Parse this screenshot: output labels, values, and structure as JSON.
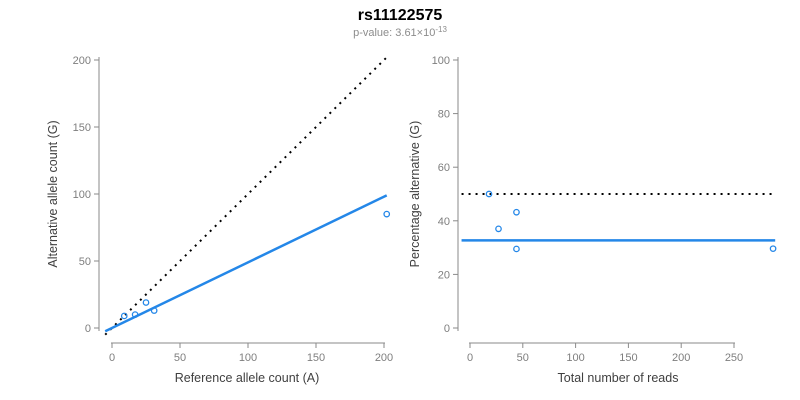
{
  "header": {
    "title": "rs11122575",
    "pvalue_base": "p-value: 3.61×10",
    "pvalue_exponent": "-13"
  },
  "colors": {
    "accent": "#2487E8",
    "axis": "#8a8a8a",
    "tick_label": "#7e7e7e",
    "axis_title": "#404040",
    "title": "#000000",
    "subtitle": "#8c8c8c",
    "background": "#ffffff",
    "dotted_line": "#000000"
  },
  "chart_data": [
    {
      "type": "scatter",
      "name": "allele-counts",
      "title": "",
      "xlabel": "Reference allele count (A)",
      "ylabel": "Alternative allele count (G)",
      "xlim": [
        0,
        200
      ],
      "ylim": [
        0,
        200
      ],
      "xticks": [
        0,
        50,
        100,
        150,
        200
      ],
      "yticks": [
        0,
        50,
        100,
        150,
        200
      ],
      "grid": false,
      "legend": "none",
      "points": [
        [
          9,
          9
        ],
        [
          17,
          10
        ],
        [
          25,
          19
        ],
        [
          31,
          13
        ],
        [
          202,
          85
        ]
      ],
      "lines": [
        {
          "name": "identity-line",
          "style": "dotted",
          "color": "black",
          "slope": 1,
          "intercept": 0
        },
        {
          "name": "fit-line",
          "style": "solid",
          "color": "accent",
          "slope": 0.49,
          "intercept": 0
        }
      ]
    },
    {
      "type": "scatter",
      "name": "percentage-vs-reads",
      "title": "",
      "xlabel": "Total number of reads",
      "ylabel": "Percentage alternative (G)",
      "xlim": [
        0,
        250
      ],
      "ylim": [
        0,
        100
      ],
      "xticks": [
        0,
        50,
        100,
        150,
        200,
        250
      ],
      "yticks": [
        0,
        20,
        40,
        60,
        80,
        100
      ],
      "grid": false,
      "legend": "none",
      "points": [
        [
          18,
          50
        ],
        [
          27,
          37
        ],
        [
          44,
          43.2
        ],
        [
          44,
          29.5
        ],
        [
          287,
          29.6
        ]
      ],
      "lines": [
        {
          "name": "expected-50pct-line",
          "style": "dotted",
          "color": "black",
          "y": 50
        },
        {
          "name": "mean-percentage-line",
          "style": "solid",
          "color": "accent",
          "y": 32.7
        }
      ]
    }
  ]
}
